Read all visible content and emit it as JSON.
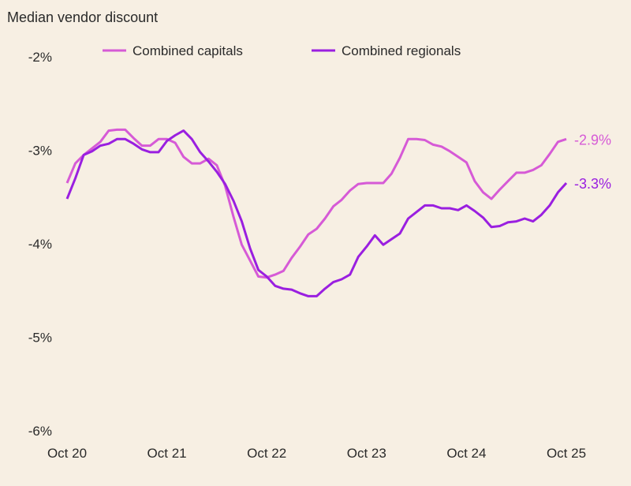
{
  "chart_data": {
    "type": "line",
    "title": "Median vendor discount",
    "xlabel": "",
    "ylabel": "",
    "x_ticks": [
      "Oct 20",
      "Oct 21",
      "Oct 22",
      "Oct 23",
      "Oct 24",
      "Oct 25"
    ],
    "y_ticks": [
      "-2%",
      "-3%",
      "-4%",
      "-5%",
      "-6%"
    ],
    "ylim": [
      -6,
      -2
    ],
    "x_range": [
      "Oct 20",
      "Oct 25"
    ],
    "x_frequency": "monthly",
    "grid": false,
    "legend_position": "top",
    "series": [
      {
        "name": "Combined capitals",
        "color": "#d65ad6",
        "end_label": "-2.9%",
        "values": [
          -3.35,
          -3.14,
          -3.05,
          -2.98,
          -2.91,
          -2.79,
          -2.78,
          -2.78,
          -2.87,
          -2.95,
          -2.95,
          -2.88,
          -2.88,
          -2.92,
          -3.07,
          -3.14,
          -3.14,
          -3.09,
          -3.16,
          -3.38,
          -3.71,
          -4.01,
          -4.18,
          -4.35,
          -4.36,
          -4.33,
          -4.29,
          -4.15,
          -4.03,
          -3.9,
          -3.84,
          -3.73,
          -3.6,
          -3.53,
          -3.43,
          -3.36,
          -3.35,
          -3.35,
          -3.35,
          -3.25,
          -3.08,
          -2.88,
          -2.88,
          -2.89,
          -2.94,
          -2.96,
          -3.01,
          -3.07,
          -3.13,
          -3.33,
          -3.45,
          -3.52,
          -3.42,
          -3.33,
          -3.24,
          -3.24,
          -3.21,
          -3.16,
          -3.04,
          -2.91,
          -2.88
        ]
      },
      {
        "name": "Combined regionals",
        "color": "#9a1fe0",
        "end_label": "-3.3%",
        "values": [
          -3.52,
          -3.3,
          -3.05,
          -3.01,
          -2.95,
          -2.93,
          -2.88,
          -2.88,
          -2.93,
          -2.99,
          -3.02,
          -3.02,
          -2.9,
          -2.84,
          -2.79,
          -2.88,
          -3.02,
          -3.12,
          -3.23,
          -3.36,
          -3.54,
          -3.76,
          -4.05,
          -4.28,
          -4.35,
          -4.45,
          -4.48,
          -4.49,
          -4.53,
          -4.56,
          -4.56,
          -4.48,
          -4.41,
          -4.38,
          -4.33,
          -4.14,
          -4.03,
          -3.91,
          -4.01,
          -3.95,
          -3.89,
          -3.73,
          -3.66,
          -3.59,
          -3.59,
          -3.62,
          -3.62,
          -3.64,
          -3.59,
          -3.65,
          -3.72,
          -3.82,
          -3.81,
          -3.77,
          -3.76,
          -3.73,
          -3.76,
          -3.69,
          -3.59,
          -3.45,
          -3.35
        ]
      }
    ]
  }
}
